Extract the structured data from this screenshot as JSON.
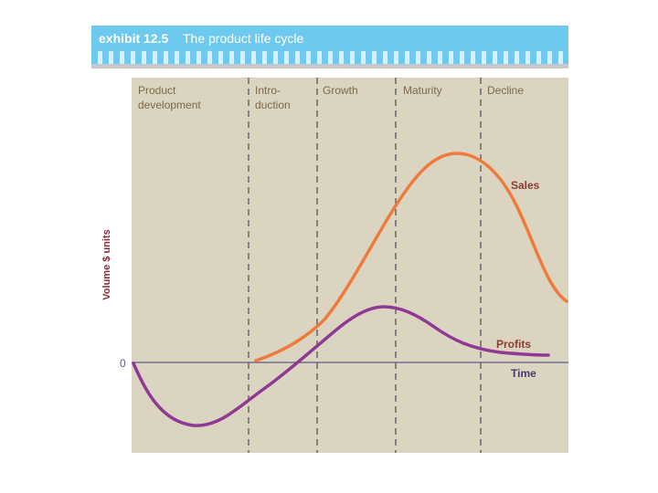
{
  "header": {
    "exhibit": "exhibit 12.5",
    "title": "The product life cycle"
  },
  "colors": {
    "header_bg": "#6ec9ee",
    "panel_bg": "#dbd4c0",
    "sales": "#ee7a3c",
    "profits": "#8e3a94",
    "stage_text": "#7a6a4c",
    "axis": "#5a5a8a"
  },
  "stages": [
    {
      "line1": "Product",
      "line2": "development"
    },
    {
      "line1": "Intro-",
      "line2": "duction"
    },
    {
      "line1": "Growth",
      "line2": ""
    },
    {
      "line1": "Maturity",
      "line2": ""
    },
    {
      "line1": "Decline",
      "line2": ""
    }
  ],
  "axes": {
    "y_label": "Volume $ units",
    "zero_label": "0",
    "x_label": "Time"
  },
  "curves": {
    "sales_label": "Sales",
    "profits_label": "Profits"
  }
}
